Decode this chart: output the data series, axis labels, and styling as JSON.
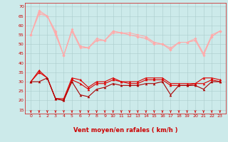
{
  "x": [
    0,
    1,
    2,
    3,
    4,
    5,
    6,
    7,
    8,
    9,
    10,
    11,
    12,
    13,
    14,
    15,
    16,
    17,
    18,
    19,
    20,
    21,
    22,
    23
  ],
  "line_rafale_max": [
    55,
    68,
    65,
    57,
    44,
    58,
    49,
    48,
    53,
    52,
    57,
    56,
    56,
    55,
    54,
    51,
    50,
    48,
    51,
    51,
    53,
    45,
    55,
    57
  ],
  "line_rafale_mid": [
    55,
    67,
    65,
    56,
    44,
    57,
    49,
    48,
    52,
    52,
    57,
    56,
    55,
    54,
    53,
    51,
    50,
    47,
    51,
    51,
    52,
    45,
    54,
    57
  ],
  "line_rafale_min": [
    55,
    66,
    65,
    55,
    44,
    57,
    48,
    48,
    52,
    52,
    56,
    56,
    55,
    54,
    53,
    50,
    50,
    47,
    51,
    51,
    52,
    44,
    54,
    57
  ],
  "line_vent_max": [
    30,
    36,
    32,
    21,
    21,
    32,
    31,
    27,
    30,
    30,
    32,
    30,
    30,
    30,
    32,
    32,
    32,
    29,
    29,
    29,
    29,
    32,
    32,
    31
  ],
  "line_vent_mid": [
    30,
    35,
    32,
    21,
    20,
    31,
    29,
    26,
    29,
    29,
    31,
    30,
    29,
    29,
    31,
    31,
    31,
    28,
    28,
    28,
    29,
    29,
    31,
    30
  ],
  "line_vent_min": [
    30,
    30,
    32,
    21,
    20,
    30,
    23,
    22,
    26,
    27,
    29,
    28,
    28,
    28,
    29,
    29,
    30,
    23,
    28,
    28,
    28,
    26,
    30,
    30
  ],
  "bg_color": "#cceaea",
  "grid_color": "#aacccc",
  "color_light": "#ffaaaa",
  "color_dark": "#dd0000",
  "color_darkest": "#aa0000",
  "xlabel": "Vent moyen/en rafales ( km/h )",
  "ylim": [
    13,
    72
  ],
  "yticks": [
    15,
    20,
    25,
    30,
    35,
    40,
    45,
    50,
    55,
    60,
    65,
    70
  ]
}
